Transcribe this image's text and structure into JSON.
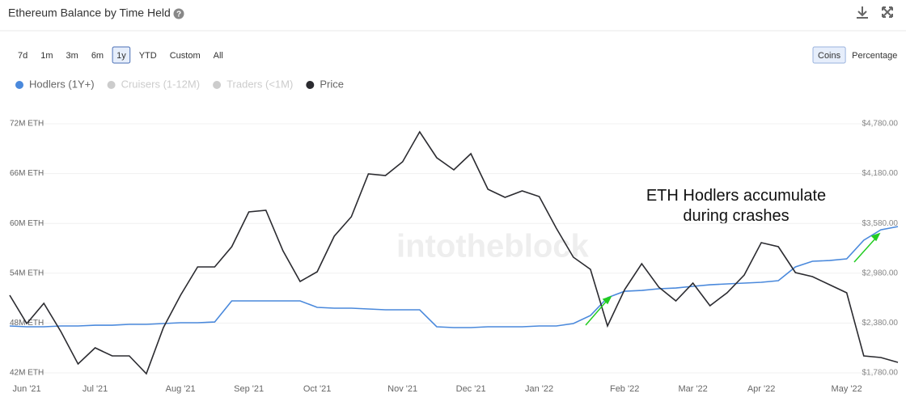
{
  "header": {
    "title": "Ethereum Balance by Time Held"
  },
  "range_buttons": [
    "7d",
    "1m",
    "3m",
    "6m",
    "1y",
    "YTD",
    "Custom",
    "All"
  ],
  "active_range": "1y",
  "unit_buttons": [
    "Coins",
    "Percentage"
  ],
  "active_unit": "Coins",
  "chart_data": {
    "type": "line",
    "watermark": "intotheblock",
    "annotation": [
      "ETH Hodlers accumulate",
      "during crashes"
    ],
    "categories": [
      null,
      "Jun '21",
      null,
      null,
      null,
      "Jul '21",
      null,
      null,
      null,
      null,
      "Aug '21",
      null,
      null,
      null,
      "Sep '21",
      null,
      null,
      null,
      "Oct '21",
      null,
      null,
      null,
      null,
      "Nov '21",
      null,
      null,
      null,
      "Dec '21",
      null,
      null,
      null,
      "Jan '22",
      null,
      null,
      null,
      null,
      "Feb '22",
      null,
      null,
      null,
      "Mar '22",
      null,
      null,
      null,
      "Apr '22",
      null,
      null,
      null,
      null,
      "May '22",
      null,
      null,
      null
    ],
    "series": [
      {
        "name": "Hodlers (1Y+)",
        "color": "#4a89dc",
        "axis": "y",
        "values": [
          47650000,
          47550000,
          47550000,
          47650000,
          47650000,
          47740000,
          47740000,
          47840000,
          47840000,
          47940000,
          48040000,
          48040000,
          48130000,
          50670000,
          50670000,
          50670000,
          50670000,
          50670000,
          49890000,
          49790000,
          49790000,
          49690000,
          49600000,
          49600000,
          49600000,
          47550000,
          47450000,
          47450000,
          47550000,
          47550000,
          47550000,
          47650000,
          47650000,
          47940000,
          48910000,
          51060000,
          51830000,
          51930000,
          52130000,
          52220000,
          52420000,
          52610000,
          52710000,
          52810000,
          52910000,
          53100000,
          54760000,
          55440000,
          55530000,
          55730000,
          57970000,
          59230000,
          59620000
        ]
      },
      {
        "name": "Cruisers (1-12M)",
        "color": "#cccccc",
        "hidden": true
      },
      {
        "name": "Traders (<1M)",
        "color": "#cccccc",
        "hidden": true
      },
      {
        "name": "Price",
        "color": "#2b2b30",
        "axis": "y2",
        "values": [
          2715,
          2374,
          2618,
          2277,
          1887,
          2082,
          1985,
          1985,
          1770,
          2325,
          2715,
          3056,
          3056,
          3299,
          3718,
          3738,
          3251,
          2881,
          2998,
          3426,
          3660,
          4176,
          4157,
          4322,
          4683,
          4371,
          4225,
          4420,
          3991,
          3894,
          3972,
          3903,
          3523,
          3173,
          3027,
          2345,
          2783,
          3095,
          2812,
          2647,
          2861,
          2588,
          2744,
          2959,
          3348,
          3299,
          2988,
          2939,
          2842,
          2744,
          1985,
          1965,
          1907
        ]
      }
    ],
    "ylim": [
      42000000,
      72000000
    ],
    "yticks": [
      {
        "value": 42000000,
        "label": "42M ETH"
      },
      {
        "value": 48000000,
        "label": "48M ETH"
      },
      {
        "value": 54000000,
        "label": "54M ETH"
      },
      {
        "value": 60000000,
        "label": "60M ETH"
      },
      {
        "value": 66000000,
        "label": "66M ETH"
      },
      {
        "value": 72000000,
        "label": "72M ETH"
      }
    ],
    "y2lim": [
      1780,
      4780
    ],
    "y2ticks": [
      {
        "value": 1780,
        "label": "$1,780.00"
      },
      {
        "value": 2380,
        "label": "$2,380.00"
      },
      {
        "value": 2980,
        "label": "$2,980.00"
      },
      {
        "value": 3580,
        "label": "$3,580.00"
      },
      {
        "value": 4180,
        "label": "$4,180.00"
      },
      {
        "value": 4780,
        "label": "$4,780.00"
      }
    ],
    "grid": true
  }
}
